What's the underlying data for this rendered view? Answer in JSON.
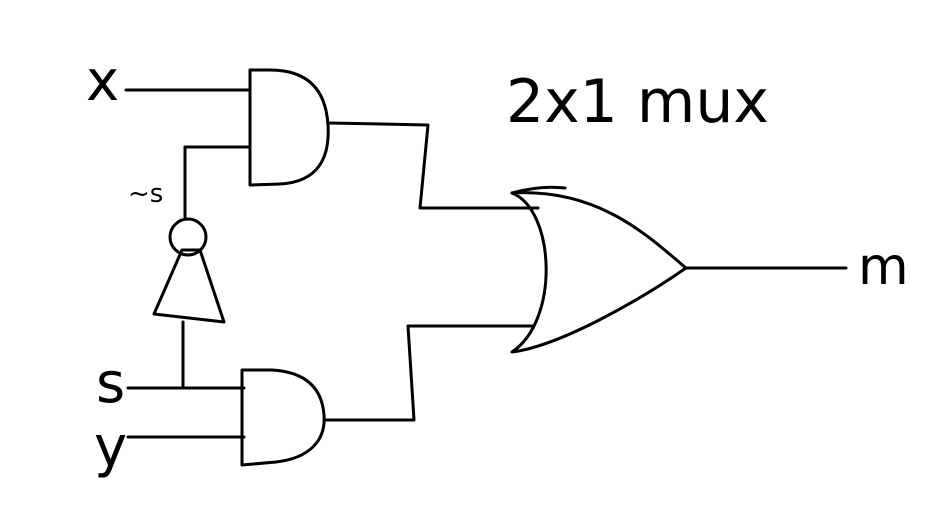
{
  "title": "2x1 mux",
  "inputs": {
    "x": "x",
    "s": "s",
    "y": "y",
    "not_s": "~s"
  },
  "output": "m",
  "colors": {
    "ink": "#000000",
    "background": "#ffffff"
  }
}
